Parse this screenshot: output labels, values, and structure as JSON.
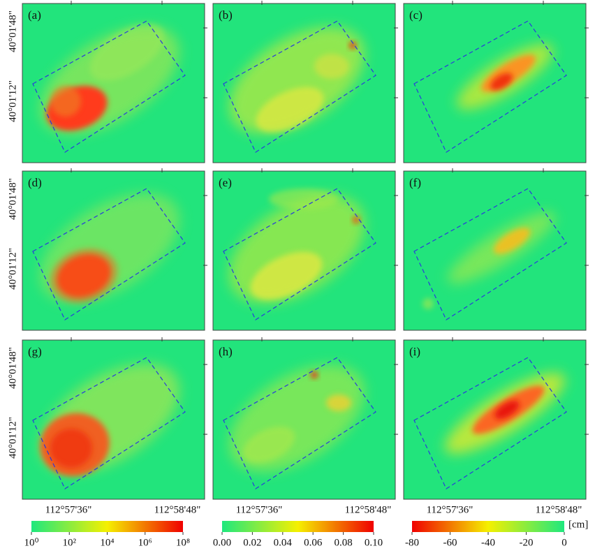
{
  "panels": [
    {
      "label": "(a)"
    },
    {
      "label": "(b)"
    },
    {
      "label": "(c)"
    },
    {
      "label": "(d)"
    },
    {
      "label": "(e)"
    },
    {
      "label": "(f)"
    },
    {
      "label": "(g)"
    },
    {
      "label": "(h)"
    },
    {
      "label": "(i)"
    }
  ],
  "lat_labels": [
    "40°01'48\"",
    "40°01'12\""
  ],
  "lon_labels": [
    "112°57'36\"",
    "112°58'48\""
  ],
  "colorbars": [
    {
      "log": true,
      "lim": [
        1,
        100000000
      ],
      "colors": [
        "#1ee87e",
        "#f5f000",
        "#f00000"
      ],
      "ticks": [
        {
          "value": 1,
          "label": "10⁰"
        },
        {
          "value": 100,
          "label": "10²"
        },
        {
          "value": 10000,
          "label": "10⁴"
        },
        {
          "value": 1000000,
          "label": "10⁶"
        },
        {
          "value": 100000000,
          "label": "10⁸"
        }
      ]
    },
    {
      "log": false,
      "lim": [
        0,
        0.1
      ],
      "colors": [
        "#1ee87e",
        "#f5f000",
        "#f00000"
      ],
      "ticks": [
        {
          "value": 0,
          "label": "0.00"
        },
        {
          "value": 0.02,
          "label": "0.02"
        },
        {
          "value": 0.04,
          "label": "0.04"
        },
        {
          "value": 0.06,
          "label": "0.06"
        },
        {
          "value": 0.08,
          "label": "0.08"
        },
        {
          "value": 0.1,
          "label": "0.10"
        }
      ]
    },
    {
      "log": false,
      "lim": [
        -80,
        0
      ],
      "colors": [
        "#f00000",
        "#f5f000",
        "#1ee87e"
      ],
      "unit": "[cm]",
      "ticks": [
        -80,
        -60,
        -40,
        -20,
        0
      ]
    }
  ]
}
